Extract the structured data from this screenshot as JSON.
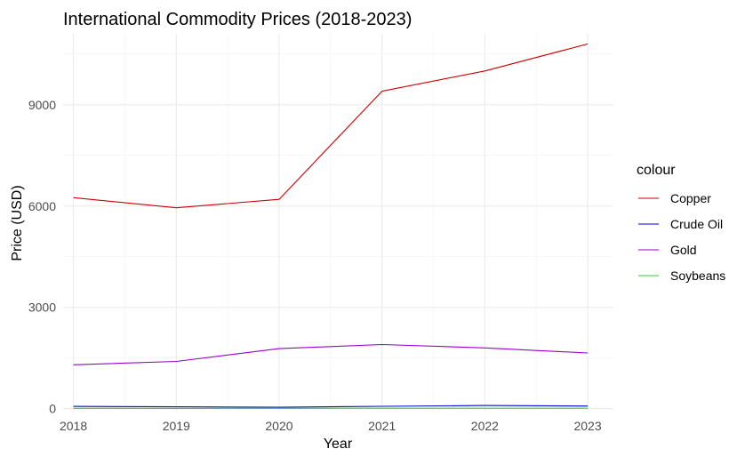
{
  "chart_data": {
    "type": "line",
    "title": "International Commodity Prices (2018-2023)",
    "xlabel": "Year",
    "ylabel": "Price (USD)",
    "x": [
      2018,
      2019,
      2020,
      2021,
      2022,
      2023
    ],
    "xlim": [
      2017.9,
      2023.25
    ],
    "ylim": [
      -60,
      11100
    ],
    "y_ticks": [
      0,
      3000,
      6000,
      9000
    ],
    "grid": true,
    "legend_title": "colour",
    "legend_position": "right",
    "series": [
      {
        "name": "Copper",
        "color": "#cc0000",
        "values": [
          6250,
          5950,
          6200,
          9400,
          10000,
          10800
        ]
      },
      {
        "name": "Crude Oil",
        "color": "#0000cc",
        "values": [
          68,
          57,
          42,
          71,
          95,
          80
        ]
      },
      {
        "name": "Gold",
        "color": "#9900cc",
        "values": [
          1300,
          1400,
          1780,
          1900,
          1800,
          1650
        ]
      },
      {
        "name": "Soybeans",
        "color": "#33cc33",
        "values": [
          10,
          9,
          11,
          14,
          15,
          14
        ]
      }
    ]
  }
}
